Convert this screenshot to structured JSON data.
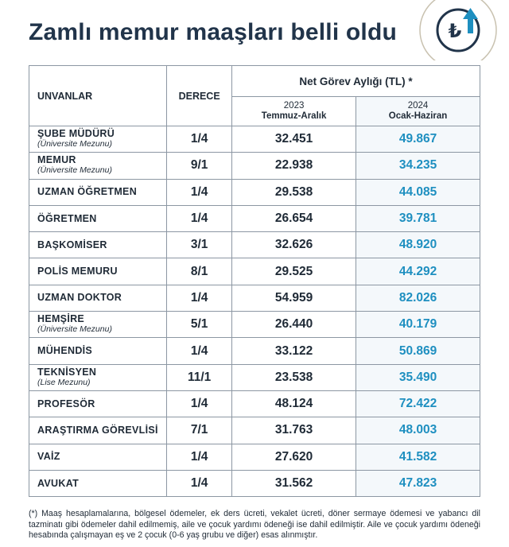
{
  "title": "Zamlı memur maaşları belli oldu",
  "logo": {
    "icon": "lira-up-arrow-icon",
    "symbol": "₺"
  },
  "colors": {
    "title": "#21344a",
    "accent": "#1e8fc0",
    "border": "#8c97a3"
  },
  "table": {
    "col_title": "UNVANLAR",
    "col_degree": "DERECE",
    "col_net": "Net Görev Aylığı (TL) *",
    "y2023_year": "2023",
    "y2023_period": "Temmuz-Aralık",
    "y2024_year": "2024",
    "y2024_period": "Ocak-Haziran",
    "rows": [
      {
        "name": "ŞUBE MÜDÜRÜ",
        "sub": "(Üniversite Mezunu)",
        "degree": "1/4",
        "v2023": "32.451",
        "v2024": "49.867"
      },
      {
        "name": "MEMUR",
        "sub": "(Üniversite Mezunu)",
        "degree": "9/1",
        "v2023": "22.938",
        "v2024": "34.235"
      },
      {
        "name": "UZMAN ÖĞRETMEN",
        "sub": "",
        "degree": "1/4",
        "v2023": "29.538",
        "v2024": "44.085"
      },
      {
        "name": "ÖĞRETMEN",
        "sub": "",
        "degree": "1/4",
        "v2023": "26.654",
        "v2024": "39.781"
      },
      {
        "name": "BAŞKOMİSER",
        "sub": "",
        "degree": "3/1",
        "v2023": "32.626",
        "v2024": "48.920"
      },
      {
        "name": "POLİS MEMURU",
        "sub": "",
        "degree": "8/1",
        "v2023": "29.525",
        "v2024": "44.292"
      },
      {
        "name": "UZMAN DOKTOR",
        "sub": "",
        "degree": "1/4",
        "v2023": "54.959",
        "v2024": "82.026"
      },
      {
        "name": "HEMŞİRE",
        "sub": "(Üniversite Mezunu)",
        "degree": "5/1",
        "v2023": "26.440",
        "v2024": "40.179"
      },
      {
        "name": "MÜHENDİS",
        "sub": "",
        "degree": "1/4",
        "v2023": "33.122",
        "v2024": "50.869"
      },
      {
        "name": "TEKNİSYEN",
        "sub": "(Lise Mezunu)",
        "degree": "11/1",
        "v2023": "23.538",
        "v2024": "35.490"
      },
      {
        "name": "PROFESÖR",
        "sub": "",
        "degree": "1/4",
        "v2023": "48.124",
        "v2024": "72.422"
      },
      {
        "name": "ARAŞTIRMA GÖREVLİSİ",
        "sub": "",
        "degree": "7/1",
        "v2023": "31.763",
        "v2024": "48.003"
      },
      {
        "name": "VAİZ",
        "sub": "",
        "degree": "1/4",
        "v2023": "27.620",
        "v2024": "41.582"
      },
      {
        "name": "AVUKAT",
        "sub": "",
        "degree": "1/4",
        "v2023": "31.562",
        "v2024": "47.823"
      }
    ]
  },
  "footnote": "(*) Maaş hesaplamalarına, bölgesel ödemeler, ek ders ücreti, vekalet ücreti, döner sermaye ödemesi ve yabancı dil tazminatı gibi ödemeler dahil edilmemiş, aile ve çocuk yardımı ödeneği ise dahil edilmiştir. Aile ve çocuk yardımı ödeneği hesabında çalışmayan eş ve 2 çocuk (0-6 yaş grubu ve diğer) esas alınmıştır."
}
